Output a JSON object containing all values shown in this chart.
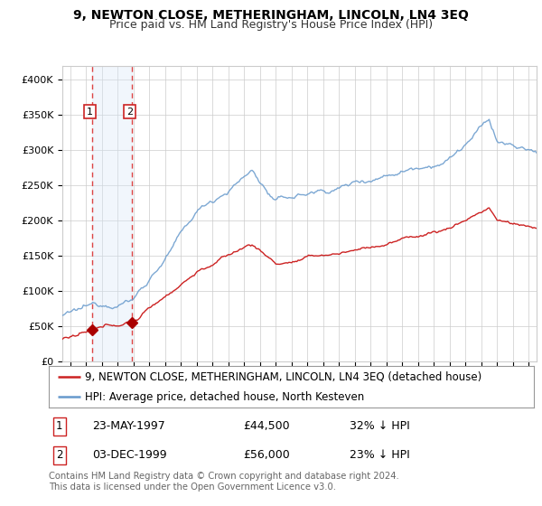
{
  "title": "9, NEWTON CLOSE, METHERINGHAM, LINCOLN, LN4 3EQ",
  "subtitle": "Price paid vs. HM Land Registry's House Price Index (HPI)",
  "legend_label_red": "9, NEWTON CLOSE, METHERINGHAM, LINCOLN, LN4 3EQ (detached house)",
  "legend_label_blue": "HPI: Average price, detached house, North Kesteven",
  "footer": "Contains HM Land Registry data © Crown copyright and database right 2024.\nThis data is licensed under the Open Government Licence v3.0.",
  "transactions": [
    {
      "label": "1",
      "date": "23-MAY-1997",
      "price": 44500,
      "pct": "32% ↓ HPI",
      "x": 1997.39
    },
    {
      "label": "2",
      "date": "03-DEC-1999",
      "price": 56000,
      "pct": "23% ↓ HPI",
      "x": 1999.92
    }
  ],
  "hpi_color": "#6699cc",
  "price_color": "#cc2222",
  "marker_color": "#aa0000",
  "vline_color": "#dd4444",
  "shade_color": "#d8e8f8",
  "grid_color": "#cccccc",
  "background_color": "#ffffff",
  "ylim": [
    0,
    420000
  ],
  "xlim_start": 1995.5,
  "xlim_end": 2025.5,
  "xtick_start": 1996,
  "xtick_end": 2025,
  "title_fontsize": 10,
  "subtitle_fontsize": 9,
  "tick_fontsize": 8,
  "legend_fontsize": 8.5,
  "yticks": [
    0,
    50000,
    100000,
    150000,
    200000,
    250000,
    300000,
    350000,
    400000
  ]
}
